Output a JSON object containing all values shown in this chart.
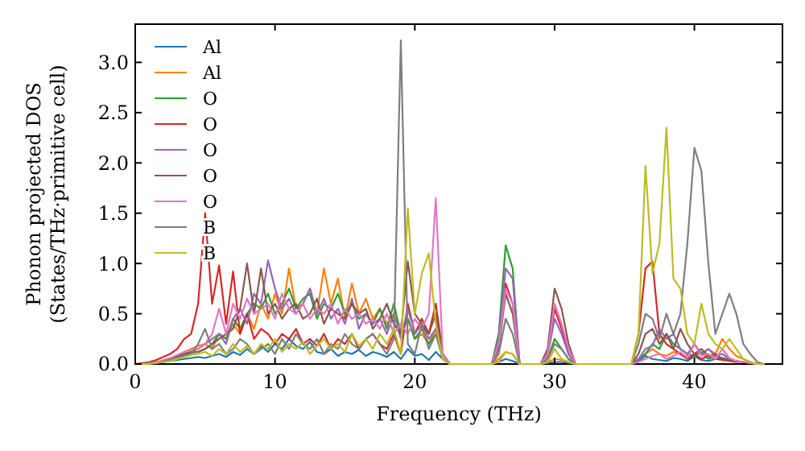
{
  "chart_data": {
    "type": "line",
    "xlabel": "Frequency (THz)",
    "ylabel": "Phonon projected DOS\n(States/THz·primitive cell)",
    "xlim": [
      0,
      46.3
    ],
    "ylim": [
      0,
      3.38
    ],
    "xticks": [
      0,
      10,
      20,
      30,
      40
    ],
    "yticks": [
      {
        "value": 0,
        "label": "0.0"
      },
      {
        "value": 0.5,
        "label": "0.5"
      },
      {
        "value": 1,
        "label": "1.0"
      },
      {
        "value": 1.5,
        "label": "1.5"
      },
      {
        "value": 2,
        "label": "2.0"
      },
      {
        "value": 2.5,
        "label": "2.5"
      },
      {
        "value": 3,
        "label": "3.0"
      }
    ],
    "legend": "top left",
    "x": [
      0,
      0.5,
      1,
      1.5,
      2,
      2.5,
      3,
      3.5,
      4,
      4.5,
      5,
      5.5,
      6,
      6.5,
      7,
      7.5,
      8,
      8.5,
      9,
      9.5,
      10,
      10.5,
      11,
      11.5,
      12,
      12.5,
      13,
      13.5,
      14,
      14.5,
      15,
      15.5,
      16,
      16.5,
      17,
      17.5,
      18,
      18.5,
      19,
      19.5,
      20,
      20.5,
      21,
      21.5,
      22,
      22.5,
      23,
      23.5,
      24,
      24.5,
      25,
      25.5,
      26,
      26.5,
      27,
      27.5,
      28,
      28.5,
      29,
      29.5,
      30,
      30.5,
      31,
      31.5,
      32,
      32.5,
      33,
      33.5,
      34,
      34.5,
      35,
      35.5,
      36,
      36.5,
      37,
      37.5,
      38,
      38.5,
      39,
      39.5,
      40,
      40.5,
      41,
      41.5,
      42,
      42.5,
      43,
      43.5,
      44,
      44.5,
      45
    ],
    "series": [
      {
        "name": "Al",
        "color": "#1f77b4",
        "values": [
          null,
          null,
          null,
          null,
          0.02,
          0.03,
          0.04,
          0.05,
          0.06,
          0.07,
          0.06,
          0.08,
          0.1,
          0.07,
          0.12,
          0.09,
          0.15,
          0.1,
          0.18,
          0.12,
          0.2,
          0.15,
          0.25,
          0.18,
          0.15,
          0.22,
          0.12,
          0.1,
          0.15,
          0.08,
          0.12,
          0.1,
          0.14,
          0.08,
          0.12,
          0.1,
          0.07,
          0.12,
          0.05,
          0.15,
          0.08,
          0.1,
          0.04,
          0.12,
          0.05,
          0,
          0,
          0,
          0,
          0,
          0,
          0,
          0.02,
          0.05,
          0.03,
          0,
          0,
          0,
          0,
          0.01,
          0.02,
          0.02,
          0.01,
          0,
          0,
          0,
          0,
          0,
          0,
          0,
          0,
          0,
          0.03,
          0.08,
          0.05,
          0.04,
          0.03,
          0.06,
          0.05,
          0.03,
          0.08,
          0.04,
          0.03,
          0.05,
          0.06,
          0.04,
          null,
          null,
          null,
          null,
          null
        ]
      },
      {
        "name": "Al",
        "color": "#ff7f0e",
        "values": [
          null,
          null,
          null,
          null,
          null,
          null,
          0.08,
          0.12,
          0.15,
          0.18,
          0.2,
          0.15,
          0.3,
          0.25,
          0.4,
          0.3,
          0.5,
          0.35,
          0.6,
          0.45,
          0.7,
          0.5,
          0.95,
          0.55,
          0.6,
          0.75,
          0.5,
          0.95,
          0.6,
          0.85,
          0.45,
          0.8,
          0.5,
          0.65,
          0.45,
          0.55,
          0.4,
          0.5,
          0.3,
          0.45,
          0.25,
          0.3,
          0.2,
          0.35,
          0.1,
          0,
          0,
          0,
          0,
          0,
          0,
          0,
          0.05,
          0.12,
          0.1,
          0,
          0,
          0,
          0,
          0.02,
          0.05,
          0.04,
          0.02,
          0,
          0,
          0,
          0,
          0,
          0,
          0,
          0,
          0,
          0.05,
          0.1,
          0.15,
          0.1,
          0.08,
          0.12,
          0.1,
          0.08,
          0.2,
          0.1,
          0.15,
          0.1,
          0.25,
          0.15,
          0.08,
          0.05,
          0.02,
          0,
          0
        ]
      },
      {
        "name": "O",
        "color": "#2ca02c",
        "values": [
          null,
          null,
          null,
          null,
          0.03,
          0.05,
          0.07,
          0.09,
          0.11,
          0.12,
          0.15,
          0.2,
          0.3,
          0.25,
          0.45,
          0.35,
          0.5,
          0.6,
          0.55,
          0.7,
          0.5,
          0.6,
          0.75,
          0.55,
          0.65,
          0.7,
          0.45,
          0.6,
          0.55,
          0.7,
          0.5,
          0.6,
          0.45,
          0.5,
          0.4,
          0.55,
          0.35,
          0.6,
          0.3,
          0.45,
          0.25,
          0.35,
          0.2,
          0.3,
          0.1,
          0,
          0,
          0,
          0,
          0,
          0,
          0,
          0.3,
          1.18,
          0.95,
          0,
          0,
          0,
          0,
          0.05,
          0.25,
          0.15,
          0.05,
          0,
          0,
          0,
          0,
          0,
          0,
          0,
          0,
          0,
          0.05,
          0.1,
          0.2,
          0.15,
          0.3,
          0.2,
          0.15,
          0.1,
          0.08,
          0.12,
          0.05,
          0.08,
          0.06,
          0.04,
          0.03,
          null,
          null,
          null,
          null
        ]
      },
      {
        "name": "O",
        "color": "#d62728",
        "values": [
          0,
          0.01,
          0.02,
          0.04,
          0.07,
          0.1,
          0.15,
          0.25,
          0.3,
          0.6,
          1.5,
          0.6,
          0.98,
          0.4,
          0.92,
          0.3,
          0.5,
          0.25,
          0.35,
          0.3,
          0.2,
          0.3,
          0.25,
          0.35,
          0.2,
          0.25,
          0.18,
          0.3,
          0.15,
          0.25,
          0.2,
          0.3,
          0.15,
          0.25,
          0.3,
          0.2,
          0.15,
          0.3,
          0.1,
          0.6,
          0.3,
          0.45,
          0.3,
          0.6,
          0.1,
          0,
          0,
          0,
          0,
          0,
          0,
          0,
          0.2,
          0.8,
          0.6,
          0,
          0,
          0,
          0,
          0.1,
          0.55,
          0.35,
          0.1,
          0,
          0,
          0,
          0,
          0,
          0,
          0,
          0,
          0,
          0.3,
          0.95,
          1.02,
          0.3,
          0.2,
          0.15,
          0.1,
          0.05,
          0.1,
          0.05,
          0.08,
          0.05,
          0.04,
          0.03,
          0.02,
          0.02,
          0.01,
          0,
          0
        ]
      },
      {
        "name": "O",
        "color": "#9467bd",
        "values": [
          0,
          0,
          0.01,
          0.02,
          0.03,
          0.05,
          0.08,
          0.1,
          0.12,
          0.15,
          0.2,
          0.25,
          0.3,
          0.2,
          0.45,
          0.55,
          0.4,
          0.7,
          0.6,
          1.03,
          0.75,
          0.55,
          0.65,
          0.5,
          0.6,
          0.75,
          0.5,
          0.65,
          0.45,
          0.55,
          0.4,
          0.65,
          0.35,
          0.5,
          0.4,
          0.45,
          0.3,
          0.5,
          0.25,
          0.55,
          0.3,
          0.4,
          0.25,
          0.35,
          0.1,
          0,
          0,
          0,
          0,
          0,
          0,
          0,
          0.25,
          0.95,
          0.85,
          0,
          0,
          0,
          0,
          0.08,
          0.45,
          0.3,
          0.1,
          0,
          0,
          0,
          0,
          0,
          0,
          0,
          0,
          0,
          0.05,
          0.15,
          0.18,
          0.35,
          0.25,
          0.3,
          0.15,
          0.1,
          0.2,
          0.1,
          0.15,
          0.08,
          0.1,
          0.05,
          0.03,
          0.02,
          0.01,
          0,
          0
        ]
      },
      {
        "name": "O",
        "color": "#8c564b",
        "values": [
          0,
          0,
          0.01,
          0.02,
          0.03,
          0.05,
          0.07,
          0.1,
          0.12,
          0.12,
          0.15,
          0.2,
          0.25,
          0.3,
          0.35,
          0.55,
          1.0,
          0.5,
          0.95,
          0.5,
          0.6,
          0.45,
          0.55,
          0.6,
          0.45,
          0.5,
          0.65,
          0.4,
          0.55,
          0.5,
          0.45,
          0.6,
          0.5,
          0.55,
          0.35,
          0.45,
          0.6,
          0.4,
          0.3,
          1.02,
          0.5,
          0.4,
          0.3,
          0.5,
          0.1,
          0,
          0,
          0,
          0,
          0,
          0,
          0,
          0.15,
          0.7,
          0.5,
          0,
          0,
          0,
          0,
          0.15,
          0.75,
          0.55,
          0.2,
          0,
          0,
          0,
          0,
          0,
          0,
          0,
          0,
          0,
          0.1,
          0.3,
          0.35,
          0.2,
          0.3,
          0.15,
          0.35,
          0.2,
          0.1,
          0.15,
          0.08,
          0.1,
          0.05,
          0.04,
          0.03,
          0.02,
          0.01,
          0,
          0
        ]
      },
      {
        "name": "O",
        "color": "#e377c2",
        "values": [
          0,
          0,
          0.01,
          0.02,
          0.04,
          0.06,
          0.09,
          0.12,
          0.14,
          0.15,
          0.2,
          0.3,
          0.55,
          0.3,
          0.6,
          0.45,
          0.65,
          0.5,
          0.55,
          0.6,
          0.45,
          0.7,
          0.55,
          0.5,
          0.6,
          0.45,
          0.55,
          0.5,
          0.6,
          0.4,
          0.55,
          0.45,
          0.5,
          0.4,
          0.45,
          0.35,
          0.5,
          0.3,
          0.4,
          0.3,
          0.45,
          0.35,
          0.5,
          1.65,
          0.1,
          0,
          0,
          0,
          0,
          0,
          0,
          0,
          0.2,
          0.75,
          0.6,
          0,
          0,
          0,
          0,
          0.1,
          0.6,
          0.4,
          0.15,
          0,
          0,
          0,
          0,
          0,
          0,
          0,
          0,
          0,
          0.02,
          0.05,
          0.08,
          0.1,
          0.05,
          0.08,
          0.12,
          0.06,
          0.2,
          0.08,
          0.1,
          0.05,
          0.15,
          0.06,
          0.03,
          0.02,
          0.01,
          0,
          0
        ]
      },
      {
        "name": "B",
        "color": "#7f7f7f",
        "values": [
          0,
          0,
          0.01,
          0.01,
          0.02,
          0.04,
          0.06,
          0.08,
          0.1,
          0.2,
          0.35,
          0.15,
          0.2,
          0.1,
          0.15,
          0.25,
          0.2,
          0.1,
          0.15,
          0.2,
          0.1,
          0.25,
          0.15,
          0.3,
          0.2,
          0.15,
          0.25,
          0.1,
          0.2,
          0.15,
          0.3,
          0.2,
          0.15,
          0.25,
          0.3,
          0.2,
          0.1,
          0.25,
          3.22,
          0.2,
          0.1,
          0.4,
          0.15,
          0.3,
          0.05,
          0,
          0,
          0,
          0,
          0,
          0,
          0,
          0.1,
          0.45,
          0.3,
          0,
          0,
          0,
          0,
          0.05,
          0.2,
          0.15,
          0.05,
          0,
          0,
          0,
          0,
          0,
          0,
          0,
          0,
          0,
          0.2,
          0.5,
          0.45,
          0.25,
          0.5,
          0.3,
          0.5,
          1.2,
          2.15,
          1.92,
          1.0,
          0.3,
          0.5,
          0.7,
          0.5,
          0.2,
          0.1,
          0.02,
          0
        ]
      },
      {
        "name": "B",
        "color": "#bcbd22",
        "values": [
          0,
          0,
          0,
          0.01,
          0.02,
          0.03,
          0.05,
          0.07,
          0.09,
          0.1,
          0.12,
          0.08,
          0.15,
          0.1,
          0.2,
          0.12,
          0.18,
          0.1,
          0.2,
          0.15,
          0.25,
          0.12,
          0.2,
          0.15,
          0.22,
          0.1,
          0.18,
          0.25,
          0.15,
          0.2,
          0.12,
          0.3,
          0.18,
          0.25,
          0.15,
          0.3,
          0.2,
          0.35,
          0.1,
          1.55,
          0.5,
          0.9,
          1.1,
          0.4,
          0.05,
          0,
          0,
          0,
          0,
          0,
          0,
          0,
          0.02,
          0.12,
          0.1,
          0,
          0,
          0,
          0,
          0.02,
          0.15,
          0.05,
          0.02,
          0,
          0,
          0,
          0,
          0,
          0,
          0,
          0,
          0,
          0.3,
          1.97,
          0.9,
          1.2,
          2.35,
          0.85,
          0.75,
          0.3,
          0.2,
          0.6,
          0.3,
          0.2,
          0.15,
          0.25,
          0.15,
          0.05,
          0.02,
          0,
          0
        ]
      }
    ]
  }
}
